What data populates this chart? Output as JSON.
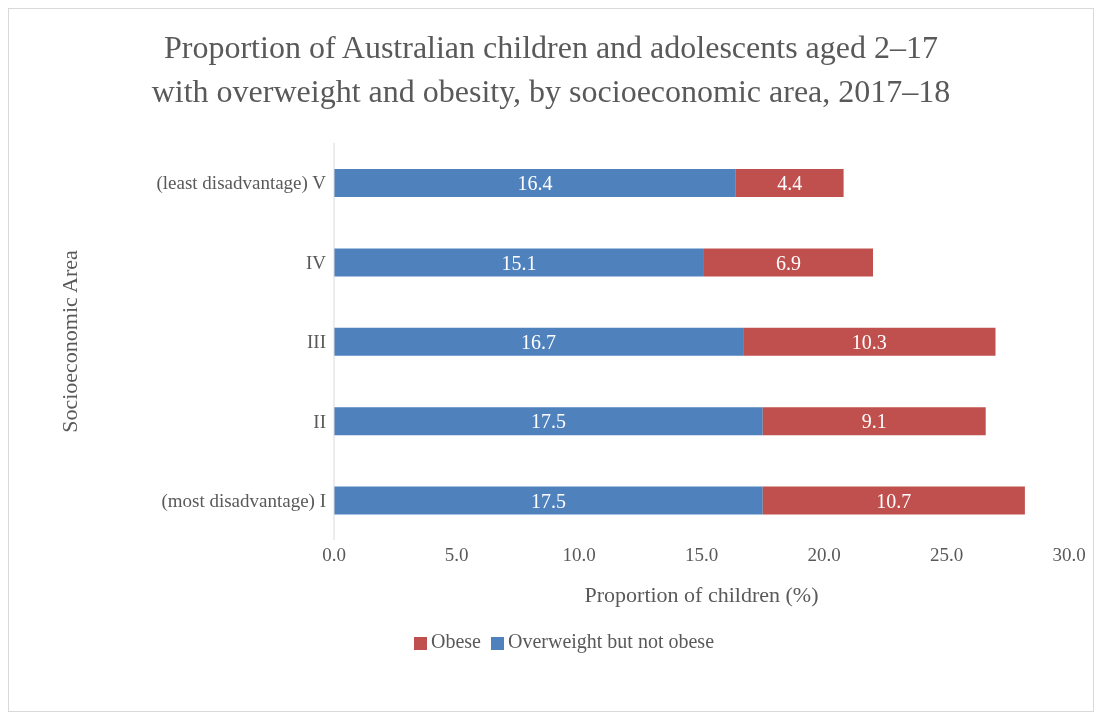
{
  "chart_data": {
    "type": "bar",
    "orientation": "horizontal",
    "stacked": true,
    "title": "Proportion of Australian children and adolescents aged 2–17 with overweight and obesity, by socioeconomic area, 2017–18",
    "xlabel": "Proportion of children (%)",
    "ylabel": "Socioeconomic Area",
    "categories": [
      "(least disadvantage) V",
      "IV",
      "III",
      "II",
      "(most disadvantage) I"
    ],
    "series": [
      {
        "name": "Overweight but not obese",
        "color": "#4f81bd",
        "values": [
          16.4,
          15.1,
          16.7,
          17.5,
          17.5
        ]
      },
      {
        "name": "Obese",
        "color": "#c0504d",
        "values": [
          4.4,
          6.9,
          10.3,
          9.1,
          10.7
        ]
      }
    ],
    "xlim": [
      0,
      30
    ],
    "xticks": [
      {
        "value": 0,
        "label": "0.0"
      },
      {
        "value": 5,
        "label": "5.0"
      },
      {
        "value": 10,
        "label": "10.0"
      },
      {
        "value": 15,
        "label": "15.0"
      },
      {
        "value": 20,
        "label": "20.0"
      },
      {
        "value": 25,
        "label": "25.0"
      },
      {
        "value": 30,
        "label": "30.0"
      }
    ],
    "data_labels": true,
    "legend": "bottom",
    "grid": false
  }
}
